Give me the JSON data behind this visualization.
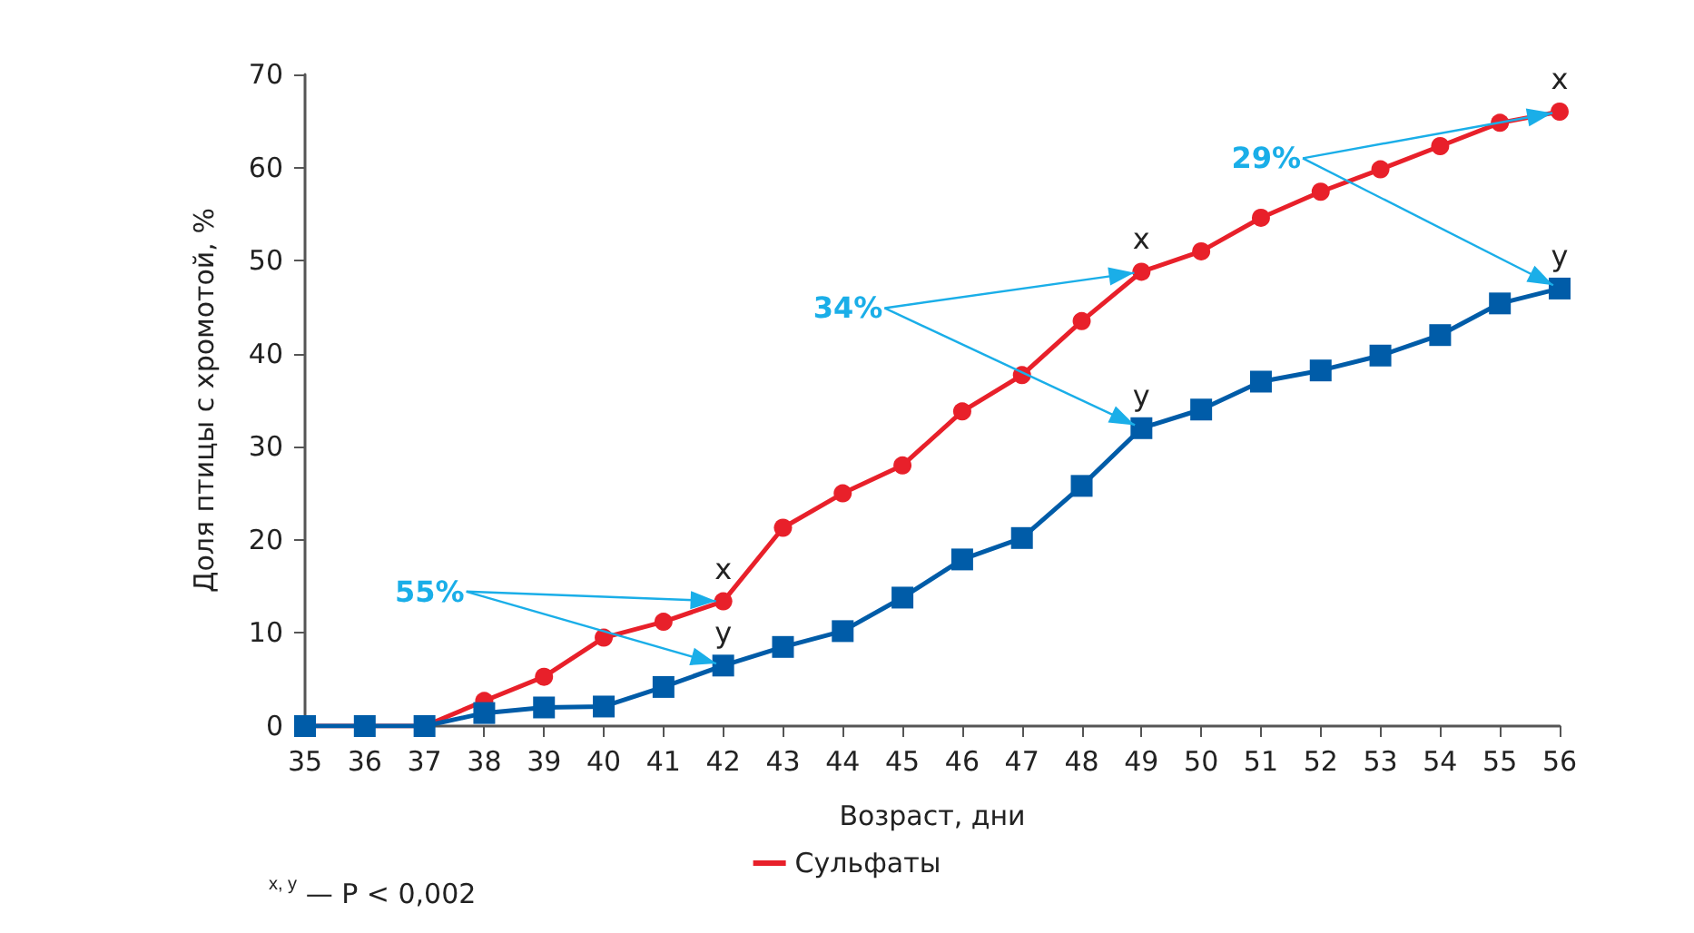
{
  "chart_data": {
    "type": "line",
    "xlabel": "Возраст, дни",
    "ylabel": "Доля птицы с хромотой, %",
    "x": [
      35,
      36,
      37,
      38,
      39,
      40,
      41,
      42,
      43,
      44,
      45,
      46,
      47,
      48,
      49,
      50,
      51,
      52,
      53,
      54,
      55,
      56
    ],
    "series": [
      {
        "name": "Сульфаты",
        "color": "#e8202a",
        "marker": "circle",
        "values": [
          0,
          0,
          0,
          2.7,
          5.3,
          9.5,
          11.2,
          13.4,
          21.3,
          25,
          28,
          33.8,
          37.7,
          43.5,
          48.8,
          51,
          54.6,
          57.4,
          59.8,
          62.3,
          64.8,
          66
        ]
      },
      {
        "color": "#005ca8",
        "marker": "square",
        "values": [
          0,
          0,
          0,
          1.4,
          2,
          2.1,
          4.2,
          6.5,
          8.5,
          10.2,
          13.8,
          17.9,
          20.2,
          25.8,
          32,
          34,
          37,
          38.2,
          39.8,
          42,
          45.4,
          47
        ]
      }
    ],
    "xlim": [
      35,
      56
    ],
    "xticks": [
      35,
      36,
      37,
      38,
      39,
      40,
      41,
      42,
      43,
      44,
      45,
      46,
      47,
      48,
      49,
      50,
      51,
      52,
      53,
      54,
      55,
      56
    ],
    "ylim": [
      0,
      70
    ],
    "yticks": [
      0,
      10,
      20,
      30,
      40,
      50,
      60,
      70
    ],
    "grid": false,
    "legend": "bottom",
    "annotations": [
      {
        "text": "55%",
        "x": 42,
        "y": 13.4
      },
      {
        "text": "34%",
        "x": 49,
        "y": 48.8
      },
      {
        "text": "29%",
        "x": 56,
        "y": 66
      },
      {
        "text": "x",
        "x": 42,
        "y": 13.4
      },
      {
        "text": "y",
        "x": 42,
        "y": 6.5
      },
      {
        "text": "x",
        "x": 49,
        "y": 48.8
      },
      {
        "text": "y",
        "x": 49,
        "y": 32
      },
      {
        "text": "x",
        "x": 56,
        "y": 66
      },
      {
        "text": "y",
        "x": 56,
        "y": 47
      },
      "$^{x, y}$ — P < 0,002"
    ]
  }
}
